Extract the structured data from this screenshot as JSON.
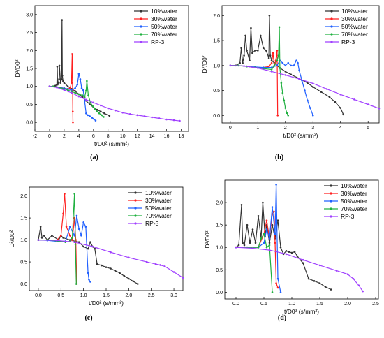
{
  "colors": {
    "10%water": "#333333",
    "30%water": "#ff2020",
    "50%water": "#2060ff",
    "70%water": "#20b040",
    "RP-3": "#a040ff"
  },
  "chart_data": [
    {
      "panel": "(a)",
      "type": "line",
      "xlabel": "t/D0² (s/mm²)",
      "ylabel": "D²/D0²",
      "xlim": [
        -2,
        19
      ],
      "ylim": [
        -0.25,
        3.25
      ],
      "xticks": [
        -2,
        0,
        2,
        4,
        6,
        8,
        10,
        12,
        14,
        16,
        18
      ],
      "yticks": [
        0.0,
        0.5,
        1.0,
        1.5,
        2.0,
        2.5,
        3.0
      ],
      "grid": false,
      "legend_position": "top-right",
      "series": [
        {
          "name": "10%water",
          "x": [
            0,
            0.4,
            0.8,
            1.0,
            1.05,
            1.1,
            1.2,
            1.3,
            1.35,
            1.5,
            1.65,
            1.7,
            1.75,
            1.85,
            2.0,
            2.5,
            3.0,
            3.5,
            4.0,
            4.5,
            5.0,
            5.5,
            6.0,
            6.5,
            7.0,
            7.5,
            8.2
          ],
          "y": [
            1.0,
            1.0,
            1.02,
            1.05,
            1.55,
            1.05,
            1.1,
            1.2,
            1.58,
            1.1,
            1.2,
            2.85,
            1.3,
            1.15,
            1.1,
            1.0,
            0.93,
            0.87,
            0.78,
            0.7,
            0.6,
            0.5,
            0.42,
            0.35,
            0.3,
            0.25,
            0.18
          ]
        },
        {
          "name": "30%water",
          "x": [
            0,
            0.5,
            1.0,
            1.5,
            2.0,
            2.5,
            2.8,
            3.0,
            3.1,
            3.15,
            3.18,
            3.2
          ],
          "y": [
            1.0,
            1.0,
            0.98,
            0.97,
            0.95,
            0.93,
            0.95,
            1.1,
            1.9,
            0.9,
            0.3,
            0.0
          ]
        },
        {
          "name": "50%water",
          "x": [
            0,
            0.5,
            1.0,
            1.5,
            2.0,
            2.5,
            3.0,
            3.5,
            3.8,
            4.0,
            4.2,
            4.4,
            4.6,
            4.8,
            5.0,
            5.2,
            5.5,
            5.8,
            6.0,
            6.3
          ],
          "y": [
            1.0,
            1.0,
            0.98,
            0.97,
            0.95,
            0.93,
            0.9,
            0.95,
            1.05,
            1.35,
            1.2,
            0.95,
            0.9,
            0.6,
            0.25,
            0.2,
            0.17,
            0.13,
            0.1,
            0.05
          ]
        },
        {
          "name": "70%water",
          "x": [
            0,
            0.5,
            1.0,
            1.5,
            2.0,
            2.5,
            3.0,
            3.5,
            4.0,
            4.5,
            4.8,
            5.0,
            5.1,
            5.3,
            5.6,
            5.9,
            6.2,
            6.5,
            6.8,
            7.1,
            7.4
          ],
          "y": [
            1.0,
            1.0,
            0.98,
            0.96,
            0.93,
            0.9,
            0.86,
            0.82,
            0.78,
            0.75,
            0.7,
            0.88,
            1.15,
            0.75,
            0.55,
            0.45,
            0.37,
            0.3,
            0.25,
            0.2,
            0.15
          ]
        },
        {
          "name": "RP-3",
          "x": [
            0,
            1,
            2,
            3,
            4,
            5,
            6,
            7,
            8,
            9,
            10,
            11,
            12,
            13,
            14,
            15,
            16,
            17,
            17.8
          ],
          "y": [
            1.0,
            0.97,
            0.9,
            0.82,
            0.72,
            0.63,
            0.55,
            0.47,
            0.39,
            0.33,
            0.27,
            0.23,
            0.2,
            0.17,
            0.14,
            0.11,
            0.08,
            0.06,
            0.04
          ]
        }
      ]
    },
    {
      "panel": "(b)",
      "type": "line",
      "xlabel": "t/D0² (s/mm²)",
      "ylabel": "D²/D0²",
      "xlim": [
        -0.3,
        5.4
      ],
      "ylim": [
        -0.15,
        2.2
      ],
      "xticks": [
        0,
        1,
        2,
        3,
        4,
        5
      ],
      "yticks": [
        0.0,
        0.5,
        1.0,
        1.5,
        2.0
      ],
      "grid": false,
      "legend_position": "top-right",
      "series": [
        {
          "name": "10%water",
          "x": [
            0,
            0.2,
            0.35,
            0.4,
            0.45,
            0.5,
            0.55,
            0.6,
            0.7,
            0.75,
            0.8,
            0.9,
            1.0,
            1.1,
            1.2,
            1.3,
            1.4,
            1.42,
            1.45,
            1.5,
            1.6,
            1.7,
            1.8,
            2.0,
            2.2,
            2.5,
            2.8,
            3.0,
            3.3,
            3.6,
            3.8,
            4.0,
            4.1
          ],
          "y": [
            1.0,
            1.0,
            1.05,
            1.35,
            1.05,
            1.2,
            1.6,
            1.3,
            1.1,
            1.75,
            1.25,
            1.3,
            1.3,
            1.6,
            1.35,
            1.3,
            1.15,
            2.0,
            1.2,
            1.1,
            1.05,
            1.0,
            0.95,
            0.88,
            0.82,
            0.74,
            0.65,
            0.57,
            0.47,
            0.37,
            0.27,
            0.15,
            0.02
          ]
        },
        {
          "name": "30%water",
          "x": [
            0,
            0.3,
            0.6,
            0.9,
            1.2,
            1.4,
            1.5,
            1.55,
            1.6,
            1.65,
            1.7,
            1.72
          ],
          "y": [
            1.0,
            1.0,
            0.98,
            0.96,
            0.96,
            0.98,
            1.05,
            1.25,
            1.0,
            1.1,
            1.3,
            0.0
          ]
        },
        {
          "name": "50%water",
          "x": [
            0,
            0.3,
            0.6,
            0.9,
            1.2,
            1.5,
            1.7,
            1.8,
            1.9,
            2.0,
            2.1,
            2.2,
            2.3,
            2.4,
            2.45,
            2.5,
            2.6,
            2.7,
            2.8,
            2.9,
            3.0
          ],
          "y": [
            1.0,
            1.0,
            0.98,
            0.97,
            0.96,
            0.96,
            1.0,
            1.1,
            1.05,
            1.0,
            1.05,
            1.0,
            1.0,
            1.1,
            1.05,
            0.9,
            0.7,
            0.5,
            0.3,
            0.15,
            0.0
          ]
        },
        {
          "name": "70%water",
          "x": [
            0,
            0.3,
            0.6,
            0.9,
            1.2,
            1.5,
            1.6,
            1.7,
            1.75,
            1.78,
            1.8,
            1.85,
            1.9,
            1.95,
            2.0,
            2.05,
            2.1
          ],
          "y": [
            1.0,
            1.0,
            0.98,
            0.96,
            0.94,
            0.92,
            1.0,
            1.1,
            1.2,
            1.77,
            0.95,
            0.65,
            0.45,
            0.3,
            0.15,
            0.05,
            0.0
          ]
        },
        {
          "name": "RP-3",
          "x": [
            0,
            0.5,
            1.0,
            1.5,
            2.0,
            2.5,
            3.0,
            3.5,
            4.0,
            4.5,
            5.0,
            5.4
          ],
          "y": [
            1.0,
            0.99,
            0.95,
            0.88,
            0.81,
            0.73,
            0.64,
            0.53,
            0.42,
            0.32,
            0.22,
            0.14
          ]
        }
      ]
    },
    {
      "panel": "(c)",
      "type": "line",
      "xlabel": "t/D0² (s/mm²)",
      "ylabel": "D²/D0²",
      "xlim": [
        -0.2,
        3.2
      ],
      "ylim": [
        -0.15,
        2.2
      ],
      "xticks": [
        0.0,
        0.5,
        1.0,
        1.5,
        2.0,
        2.5,
        3.0
      ],
      "yticks": [
        0.0,
        0.5,
        1.0,
        1.5,
        2.0
      ],
      "grid": false,
      "legend_position": "top-right",
      "series": [
        {
          "name": "10%water",
          "x": [
            0,
            0.05,
            0.08,
            0.12,
            0.2,
            0.3,
            0.45,
            0.5,
            0.55,
            0.7,
            0.9,
            1.0,
            1.1,
            1.15,
            1.2,
            1.25,
            1.3,
            1.4,
            1.5,
            1.6,
            1.7,
            1.8,
            1.9,
            2.0,
            2.1,
            2.2
          ],
          "y": [
            1.0,
            1.3,
            1.05,
            1.1,
            1.0,
            1.1,
            1.0,
            1.1,
            1.05,
            1.0,
            0.95,
            0.85,
            0.8,
            0.95,
            0.85,
            0.8,
            0.45,
            0.42,
            0.38,
            0.35,
            0.3,
            0.25,
            0.18,
            0.12,
            0.06,
            0.0
          ]
        },
        {
          "name": "30%water",
          "x": [
            0,
            0.2,
            0.4,
            0.5,
            0.55,
            0.58,
            0.62,
            0.7,
            0.75,
            0.8,
            0.83,
            0.85
          ],
          "y": [
            1.0,
            1.0,
            0.98,
            1.1,
            1.6,
            2.05,
            1.3,
            1.1,
            1.0,
            1.5,
            1.0,
            0.0
          ]
        },
        {
          "name": "50%water",
          "x": [
            0,
            0.2,
            0.4,
            0.6,
            0.7,
            0.8,
            0.85,
            0.9,
            0.95,
            1.0,
            1.05,
            1.1,
            1.12,
            1.15
          ],
          "y": [
            1.0,
            0.99,
            0.97,
            0.97,
            1.3,
            1.1,
            1.55,
            1.25,
            1.1,
            1.4,
            1.3,
            0.25,
            0.1,
            0.05
          ]
        },
        {
          "name": "70%water",
          "x": [
            0,
            0.2,
            0.4,
            0.6,
            0.7,
            0.75,
            0.8,
            0.82,
            0.84
          ],
          "y": [
            1.0,
            1.0,
            0.98,
            0.95,
            0.97,
            1.05,
            2.05,
            0.9,
            0.0
          ]
        },
        {
          "name": "RP-3",
          "x": [
            0,
            0.4,
            0.8,
            1.2,
            1.6,
            2.0,
            2.4,
            2.6,
            2.7,
            2.8,
            3.0,
            3.2
          ],
          "y": [
            1.0,
            0.99,
            0.95,
            0.85,
            0.72,
            0.6,
            0.5,
            0.45,
            0.43,
            0.4,
            0.27,
            0.14
          ]
        }
      ]
    },
    {
      "panel": "(d)",
      "type": "line",
      "xlabel": "t/D0² (s/mm²)",
      "ylabel": "D²/D0²",
      "xlim": [
        -0.2,
        2.55
      ],
      "ylim": [
        -0.15,
        2.5
      ],
      "xticks": [
        0.0,
        0.5,
        1.0,
        1.5,
        2.0,
        2.5
      ],
      "yticks": [
        0.0,
        0.5,
        1.0,
        1.5,
        2.0
      ],
      "grid": false,
      "legend_position": "top-right",
      "series": [
        {
          "name": "10%water",
          "x": [
            0,
            0.05,
            0.1,
            0.12,
            0.15,
            0.2,
            0.25,
            0.3,
            0.35,
            0.4,
            0.45,
            0.48,
            0.52,
            0.55,
            0.6,
            0.65,
            0.7,
            0.75,
            0.8,
            0.85,
            0.9,
            0.95,
            1.0,
            1.05,
            1.1,
            1.2,
            1.3,
            1.4,
            1.5,
            1.6,
            1.7
          ],
          "y": [
            1.0,
            1.05,
            1.95,
            1.1,
            1.05,
            1.5,
            1.1,
            1.4,
            1.1,
            1.7,
            1.2,
            2.0,
            1.25,
            1.5,
            1.1,
            1.5,
            1.2,
            1.6,
            1.0,
            0.85,
            0.92,
            0.9,
            0.88,
            0.9,
            0.8,
            0.65,
            0.3,
            0.25,
            0.2,
            0.12,
            0.06
          ]
        },
        {
          "name": "30%water",
          "x": [
            0,
            0.2,
            0.4,
            0.5,
            0.55,
            0.6,
            0.65,
            0.68,
            0.7,
            0.72,
            0.75
          ],
          "y": [
            1.0,
            1.0,
            1.0,
            1.3,
            1.6,
            1.2,
            1.75,
            1.8,
            1.1,
            0.2,
            0.1
          ]
        },
        {
          "name": "50%water",
          "x": [
            0,
            0.2,
            0.4,
            0.5,
            0.55,
            0.6,
            0.65,
            0.7,
            0.72,
            0.75,
            0.8
          ],
          "y": [
            1.0,
            1.0,
            1.0,
            1.1,
            1.4,
            1.2,
            1.9,
            1.3,
            2.4,
            0.3,
            0.0
          ]
        },
        {
          "name": "70%water",
          "x": [
            0,
            0.2,
            0.4,
            0.45,
            0.5,
            0.55,
            0.6,
            0.65
          ],
          "y": [
            1.0,
            1.0,
            1.0,
            1.2,
            1.3,
            1.0,
            1.05,
            0.0
          ]
        },
        {
          "name": "RP-3",
          "x": [
            0,
            0.3,
            0.6,
            0.9,
            1.2,
            1.5,
            1.8,
            2.0,
            2.1,
            2.2,
            2.27
          ],
          "y": [
            1.0,
            0.98,
            0.94,
            0.85,
            0.72,
            0.6,
            0.48,
            0.4,
            0.3,
            0.15,
            0.02
          ]
        }
      ]
    }
  ]
}
